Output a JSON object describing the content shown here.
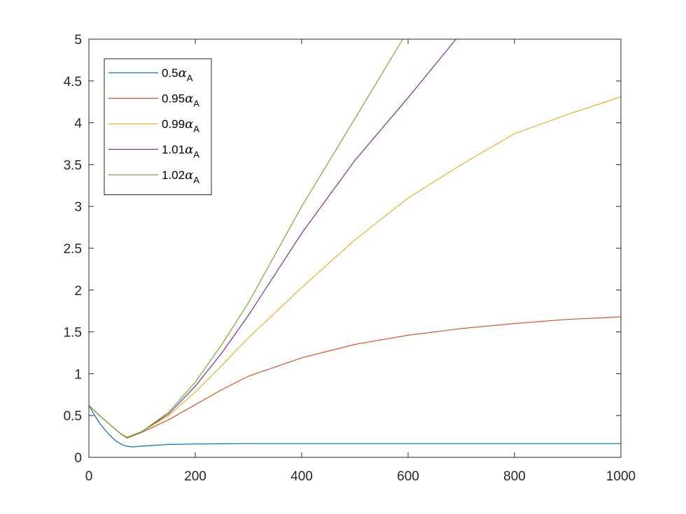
{
  "chart_data": {
    "type": "line",
    "title": "",
    "xlabel": "",
    "ylabel": "",
    "xlim": [
      0,
      1000
    ],
    "ylim": [
      0,
      5
    ],
    "xticks": [
      0,
      200,
      400,
      600,
      800,
      1000
    ],
    "yticks": [
      0,
      0.5,
      1,
      1.5,
      2,
      2.5,
      3,
      3.5,
      4,
      4.5,
      5
    ],
    "xtick_labels": [
      "0",
      "200",
      "400",
      "600",
      "800",
      "1000"
    ],
    "ytick_labels": [
      "0",
      "0.5",
      "1",
      "1.5",
      "2",
      "2.5",
      "3",
      "3.5",
      "4",
      "4.5",
      "5"
    ],
    "grid": false,
    "box": true,
    "legend_position": "top-left",
    "series": [
      {
        "name": "0.5αA",
        "legend_prefix": "0.5",
        "legend_symbol": "α",
        "legend_subscript": "A",
        "color": "#0072BD",
        "x": [
          0,
          10,
          20,
          30,
          40,
          50,
          60,
          70,
          80,
          85,
          100,
          150,
          200,
          300,
          400,
          600,
          800,
          1000
        ],
        "y": [
          0.62,
          0.51,
          0.41,
          0.33,
          0.26,
          0.2,
          0.16,
          0.135,
          0.125,
          0.125,
          0.135,
          0.155,
          0.16,
          0.165,
          0.165,
          0.165,
          0.165,
          0.165
        ]
      },
      {
        "name": "0.95αA",
        "legend_prefix": "0.95",
        "legend_symbol": "α",
        "legend_subscript": "A",
        "color": "#D95319",
        "x": [
          0,
          20,
          40,
          60,
          72,
          100,
          150,
          200,
          250,
          300,
          400,
          500,
          600,
          700,
          800,
          900,
          1000
        ],
        "y": [
          0.62,
          0.5,
          0.39,
          0.28,
          0.23,
          0.3,
          0.45,
          0.63,
          0.81,
          0.97,
          1.19,
          1.35,
          1.46,
          1.54,
          1.6,
          1.65,
          1.68
        ]
      },
      {
        "name": "0.99αA",
        "legend_prefix": "0.99",
        "legend_symbol": "α",
        "legend_subscript": "A",
        "color": "#EDB120",
        "x": [
          0,
          20,
          40,
          60,
          72,
          100,
          150,
          200,
          250,
          300,
          400,
          500,
          600,
          700,
          800,
          900,
          1000
        ],
        "y": [
          0.62,
          0.5,
          0.39,
          0.28,
          0.24,
          0.31,
          0.5,
          0.78,
          1.1,
          1.43,
          2.03,
          2.6,
          3.1,
          3.5,
          3.87,
          4.1,
          4.31
        ]
      },
      {
        "name": "1.01αA",
        "legend_prefix": "1.01",
        "legend_symbol": "α",
        "legend_subscript": "A",
        "color": "#7E2F8E",
        "x": [
          0,
          20,
          40,
          60,
          72,
          100,
          150,
          200,
          250,
          300,
          400,
          500,
          600,
          690
        ],
        "y": [
          0.62,
          0.5,
          0.39,
          0.28,
          0.24,
          0.31,
          0.52,
          0.85,
          1.25,
          1.7,
          2.68,
          3.55,
          4.3,
          5.0
        ]
      },
      {
        "name": "1.02αA",
        "legend_prefix": "1.02",
        "legend_symbol": "α",
        "legend_subscript": "A",
        "color": "#77AC30",
        "x": [
          0,
          20,
          40,
          60,
          72,
          100,
          150,
          200,
          250,
          300,
          400,
          500,
          590
        ],
        "y": [
          0.62,
          0.5,
          0.39,
          0.28,
          0.24,
          0.31,
          0.54,
          0.9,
          1.35,
          1.85,
          3.0,
          4.05,
          5.0
        ]
      }
    ]
  }
}
